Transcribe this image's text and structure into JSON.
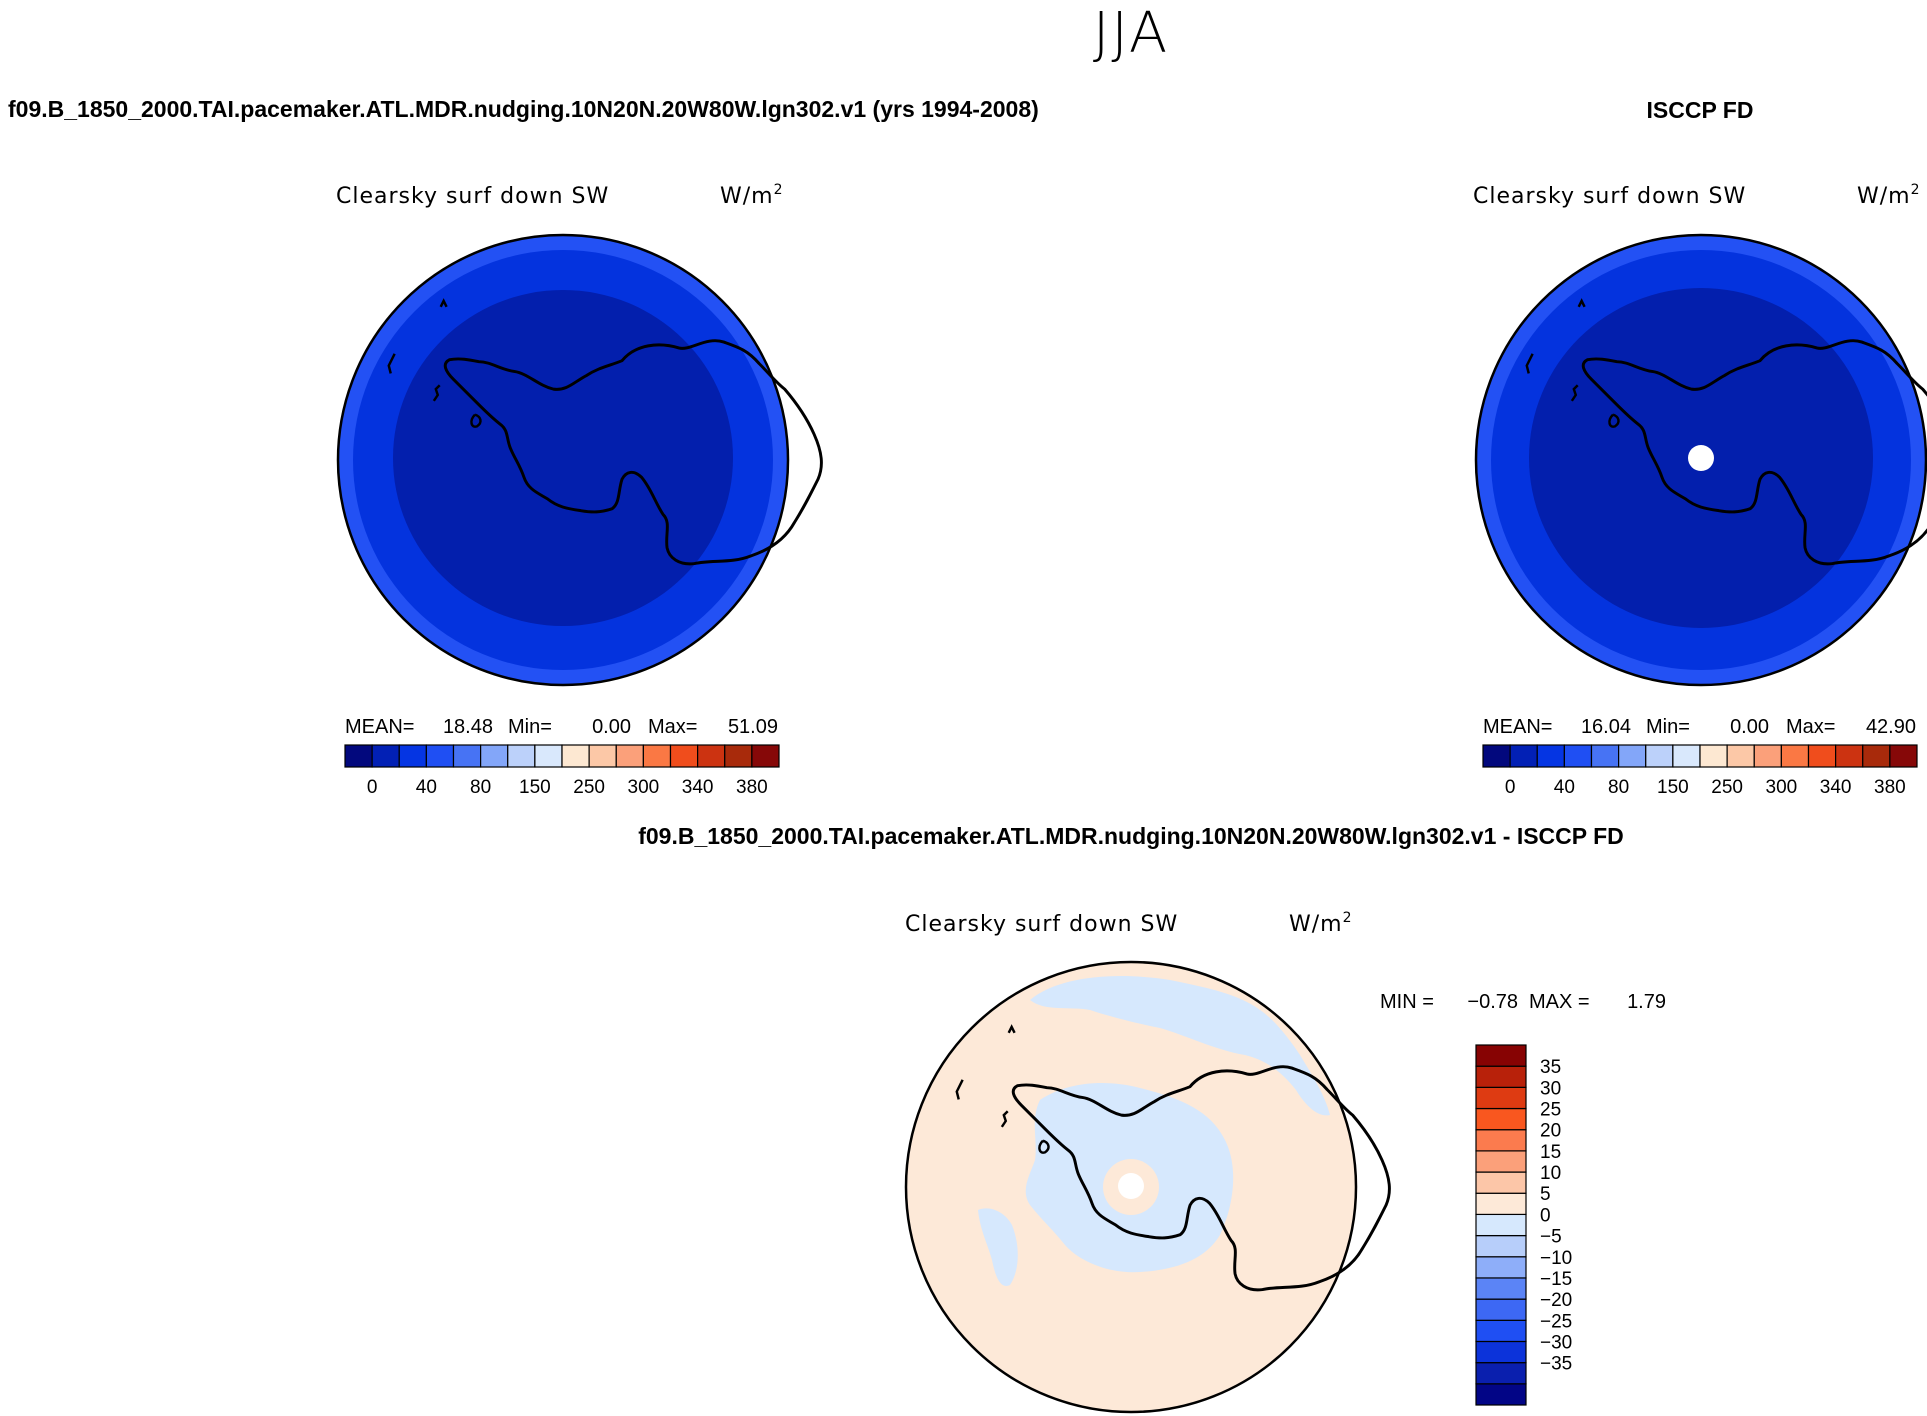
{
  "season": "JJA",
  "units_base": "W/m",
  "units_exp": "2",
  "colors": {
    "abs_scale": [
      "#02087d",
      "#0220b5",
      "#0535e3",
      "#1f4ff3",
      "#4773f4",
      "#83a6f9",
      "#bcd1fa",
      "#d9e8fc",
      "#fde8d2",
      "#fcc8a7",
      "#fba07a",
      "#fa7844",
      "#f04d1c",
      "#cc3311",
      "#a82a0b",
      "#860808"
    ],
    "diff_scale": [
      "#020586",
      "#0a1fae",
      "#0c33da",
      "#1f4ff3",
      "#3d68f4",
      "#5b84f6",
      "#8eaef9",
      "#b7cefa",
      "#d6e8fd",
      "#fde9d8",
      "#fcc6a8",
      "#fba07a",
      "#fb7b4e",
      "#f9571f",
      "#de3b12",
      "#b8210a",
      "#870303"
    ],
    "outer_ring": "#2351f4",
    "mid_ring": "#0433de",
    "inner_fill": "#031fad",
    "diff_fill": "#fde9d8",
    "diff_neg": "#d6e8fd"
  },
  "panels": [
    {
      "case_title": "f09.B_1850_2000.TAI.pacemaker.ATL.MDR.nudging.10N20N.20W80W.lgn302.v1 (yrs 1994-2008)",
      "label": "Clearsky surf down SW",
      "mean_label": "MEAN=",
      "mean": "18.48",
      "min_label": "Min=",
      "min": "0.00",
      "max_label": "Max=",
      "max": "51.09",
      "has_hole": false
    },
    {
      "case_title": "ISCCP FD",
      "label": "Clearsky surf down SW",
      "mean_label": "MEAN=",
      "mean": "16.04",
      "min_label": "Min=",
      "min": "0.00",
      "max_label": "Max=",
      "max": "42.90",
      "has_hole": true
    }
  ],
  "abs_ticks": [
    "0",
    "40",
    "80",
    "150",
    "250",
    "300",
    "340",
    "380"
  ],
  "diff_panel": {
    "title": "f09.B_1850_2000.TAI.pacemaker.ATL.MDR.nudging.10N20N.20W80W.lgn302.v1 - ISCCP FD",
    "label": "Clearsky surf down SW",
    "min_label": "MIN =",
    "min": "−0.78",
    "max_label": "MAX =",
    "max": "1.79",
    "ticks": [
      "35",
      "30",
      "25",
      "20",
      "15",
      "10",
      "5",
      "0",
      "−5",
      "−10",
      "−15",
      "−20",
      "−25",
      "−30",
      "−35"
    ]
  },
  "chart_data": [
    {
      "type": "heatmap",
      "title": "Clearsky surf down SW",
      "subtitle": "f09.B_1850_2000.TAI.pacemaker.ATL.MDR.nudging.10N20N.20W80W.lgn302.v1 (yrs 1994-2008)",
      "units": "W/m2",
      "projection": "south polar stereographic",
      "mean": 18.48,
      "min": 0.0,
      "max": 51.09,
      "colorbar_levels": [
        0,
        40,
        80,
        150,
        250,
        300,
        340,
        380
      ]
    },
    {
      "type": "heatmap",
      "title": "Clearsky surf down SW",
      "subtitle": "ISCCP FD",
      "units": "W/m2",
      "projection": "south polar stereographic",
      "mean": 16.04,
      "min": 0.0,
      "max": 42.9,
      "colorbar_levels": [
        0,
        40,
        80,
        150,
        250,
        300,
        340,
        380
      ]
    },
    {
      "type": "heatmap",
      "title": "Clearsky surf down SW",
      "subtitle": "f09.B_1850_2000.TAI.pacemaker.ATL.MDR.nudging.10N20N.20W80W.lgn302.v1 - ISCCP FD",
      "units": "W/m2",
      "projection": "south polar stereographic",
      "min": -0.78,
      "max": 1.79,
      "colorbar_levels": [
        -35,
        -30,
        -25,
        -20,
        -15,
        -10,
        -5,
        0,
        5,
        10,
        15,
        20,
        25,
        30,
        35
      ]
    }
  ]
}
